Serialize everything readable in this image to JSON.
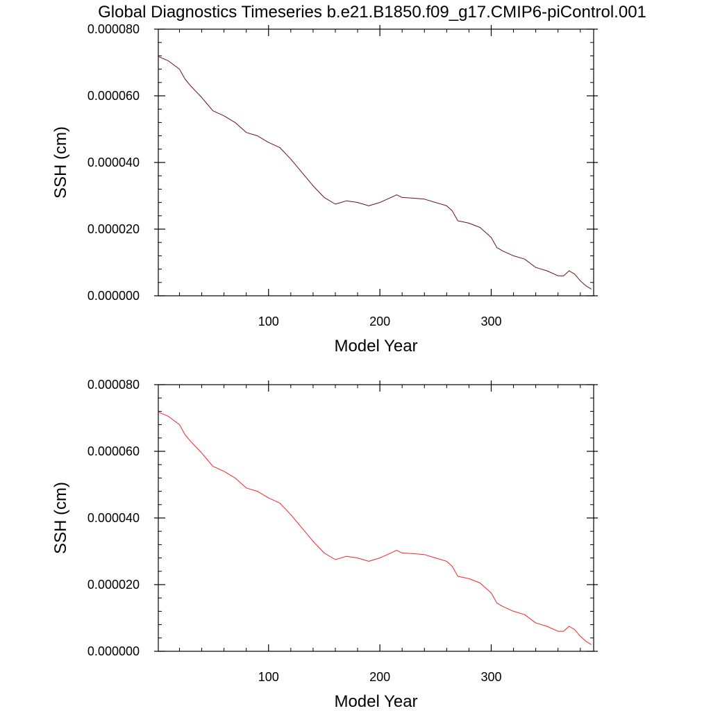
{
  "figure": {
    "title": "Global Diagnostics Timeseries b.e21.B1850.f09_g17.CMIP6-piControl.001"
  },
  "colors": {
    "top_line": "#6b1010",
    "bottom_line": "#ff2020",
    "axes": "#000000",
    "background": "#ffffff"
  },
  "chart_data": [
    {
      "type": "line",
      "title": "Global Diagnostics Timeseries b.e21.B1850.f09_g17.CMIP6-piControl.001",
      "xlabel": "Model Year",
      "ylabel": "SSH (cm)",
      "xlim": [
        1,
        392
      ],
      "ylim": [
        0.0,
        8e-05
      ],
      "x_ticks": [
        100,
        200,
        300
      ],
      "y_ticks": [
        "0.000000",
        "0.000020",
        "0.000040",
        "0.000060",
        "0.000080"
      ],
      "y_tick_values": [
        0.0,
        2e-05,
        4e-05,
        6e-05,
        8e-05
      ],
      "grid": false,
      "series": [
        {
          "color": "#6b1010",
          "x": [
            1,
            10,
            20,
            25,
            30,
            40,
            45,
            50,
            60,
            70,
            80,
            90,
            100,
            110,
            120,
            130,
            140,
            150,
            160,
            170,
            180,
            190,
            200,
            210,
            215,
            220,
            230,
            240,
            250,
            260,
            265,
            270,
            280,
            290,
            300,
            305,
            310,
            320,
            330,
            340,
            350,
            360,
            365,
            370,
            375,
            380,
            385,
            390
          ],
          "y": [
            7.18e-05,
            7.05e-05,
            6.8e-05,
            6.5e-05,
            6.3e-05,
            5.95e-05,
            5.75e-05,
            5.55e-05,
            5.4e-05,
            5.2e-05,
            4.9e-05,
            4.8e-05,
            4.6e-05,
            4.45e-05,
            4.1e-05,
            3.7e-05,
            3.3e-05,
            2.95e-05,
            2.75e-05,
            2.85e-05,
            2.8e-05,
            2.7e-05,
            2.8e-05,
            2.95e-05,
            3.03e-05,
            2.95e-05,
            2.93e-05,
            2.9e-05,
            2.8e-05,
            2.7e-05,
            2.55e-05,
            2.25e-05,
            2.18e-05,
            2.05e-05,
            1.75e-05,
            1.45e-05,
            1.35e-05,
            1.2e-05,
            1.1e-05,
            8.5e-06,
            7.5e-06,
            6e-06,
            6e-06,
            7.5e-06,
            6.5e-06,
            4.5e-06,
            3e-06,
            2e-06
          ]
        }
      ]
    },
    {
      "type": "line",
      "xlabel": "Model Year",
      "ylabel": "SSH (cm)",
      "xlim": [
        1,
        392
      ],
      "ylim": [
        0.0,
        8e-05
      ],
      "x_ticks": [
        100,
        200,
        300
      ],
      "y_ticks": [
        "0.000000",
        "0.000020",
        "0.000040",
        "0.000060",
        "0.000080"
      ],
      "y_tick_values": [
        0.0,
        2e-05,
        4e-05,
        6e-05,
        8e-05
      ],
      "grid": false,
      "series": [
        {
          "color": "#ff2020",
          "x": [
            1,
            10,
            20,
            25,
            30,
            40,
            45,
            50,
            60,
            70,
            80,
            90,
            100,
            110,
            120,
            130,
            140,
            150,
            160,
            170,
            180,
            190,
            200,
            210,
            215,
            220,
            230,
            240,
            250,
            260,
            265,
            270,
            280,
            290,
            300,
            305,
            310,
            320,
            330,
            340,
            350,
            360,
            365,
            370,
            375,
            380,
            385,
            390
          ],
          "y": [
            7.18e-05,
            7.05e-05,
            6.8e-05,
            6.5e-05,
            6.3e-05,
            5.95e-05,
            5.75e-05,
            5.55e-05,
            5.4e-05,
            5.2e-05,
            4.9e-05,
            4.8e-05,
            4.6e-05,
            4.45e-05,
            4.1e-05,
            3.7e-05,
            3.3e-05,
            2.95e-05,
            2.75e-05,
            2.85e-05,
            2.8e-05,
            2.7e-05,
            2.8e-05,
            2.95e-05,
            3.03e-05,
            2.95e-05,
            2.93e-05,
            2.9e-05,
            2.8e-05,
            2.7e-05,
            2.55e-05,
            2.25e-05,
            2.18e-05,
            2.05e-05,
            1.75e-05,
            1.45e-05,
            1.35e-05,
            1.2e-05,
            1.1e-05,
            8.5e-06,
            7.5e-06,
            6e-06,
            6e-06,
            7.5e-06,
            6.5e-06,
            4.5e-06,
            3e-06,
            2e-06
          ]
        }
      ]
    }
  ]
}
